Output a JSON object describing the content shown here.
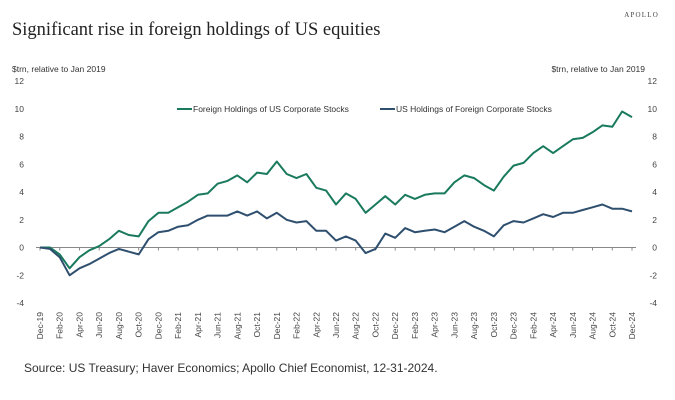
{
  "brand": "APOLLO",
  "title": "Significant rise in foreign holdings of US equities",
  "source": "Source: US Treasury; Haver Economics; Apollo Chief Economist, 12-31-2024.",
  "colors": {
    "foreign": "#1a7a5e",
    "us": "#2f4f6f",
    "axis": "#888888"
  },
  "chart_data": {
    "type": "line",
    "title": "Significant rise in foreign holdings of US equities",
    "ylabel_left": "$trn, relative to Jan 2019",
    "ylabel_right": "$trn, relative to Jan 2019",
    "ylim": [
      -4,
      12
    ],
    "yticks": [
      12,
      10,
      8,
      6,
      4,
      2,
      0,
      -2,
      -4
    ],
    "grid": false,
    "legend_position": "top-center",
    "x_start": "Dec-19",
    "x_frequency": "monthly",
    "xtick_labels": [
      "Dec-19",
      "Feb-20",
      "Apr-20",
      "Jun-20",
      "Aug-20",
      "Oct-20",
      "Dec-20",
      "Feb-21",
      "Apr-21",
      "Jun-21",
      "Aug-21",
      "Oct-21",
      "Dec-21",
      "Feb-22",
      "Apr-22",
      "Jun-22",
      "Aug-22",
      "Oct-22",
      "Dec-22",
      "Feb-23",
      "Apr-23",
      "Jun-23",
      "Aug-23",
      "Oct-23",
      "Dec-23",
      "Feb-24",
      "Apr-24",
      "Jun-24",
      "Aug-24",
      "Oct-24",
      "Dec-24"
    ],
    "series": [
      {
        "name": "Foreign Holdings of US Corporate Stocks",
        "values": [
          0,
          0,
          -0.5,
          -1.5,
          -0.7,
          -0.2,
          0.1,
          0.6,
          1.2,
          0.9,
          0.8,
          1.9,
          2.5,
          2.5,
          2.9,
          3.3,
          3.8,
          3.9,
          4.6,
          4.8,
          5.2,
          4.7,
          5.4,
          5.3,
          6.2,
          5.3,
          5.0,
          5.3,
          4.3,
          4.1,
          3.1,
          3.9,
          3.5,
          2.5,
          3.1,
          3.7,
          3.1,
          3.8,
          3.5,
          3.8,
          3.9,
          3.9,
          4.7,
          5.2,
          5.0,
          4.5,
          4.1,
          5.1,
          5.9,
          6.1,
          6.8,
          7.3,
          6.8,
          7.3,
          7.8,
          7.9,
          8.3,
          8.8,
          8.7,
          9.8,
          9.4
        ]
      },
      {
        "name": "US Holdings of Foreign Corporate Stocks",
        "values": [
          0,
          -0.1,
          -0.7,
          -2.0,
          -1.5,
          -1.2,
          -0.8,
          -0.4,
          -0.1,
          -0.3,
          -0.5,
          0.6,
          1.1,
          1.2,
          1.5,
          1.6,
          2.0,
          2.3,
          2.3,
          2.3,
          2.6,
          2.3,
          2.6,
          2.1,
          2.5,
          2.0,
          1.8,
          1.9,
          1.2,
          1.2,
          0.5,
          0.8,
          0.5,
          -0.4,
          -0.1,
          1.0,
          0.7,
          1.4,
          1.1,
          1.2,
          1.3,
          1.1,
          1.5,
          1.9,
          1.5,
          1.2,
          0.8,
          1.6,
          1.9,
          1.8,
          2.1,
          2.4,
          2.2,
          2.5,
          2.5,
          2.7,
          2.9,
          3.1,
          2.8,
          2.8,
          2.6
        ]
      }
    ]
  }
}
